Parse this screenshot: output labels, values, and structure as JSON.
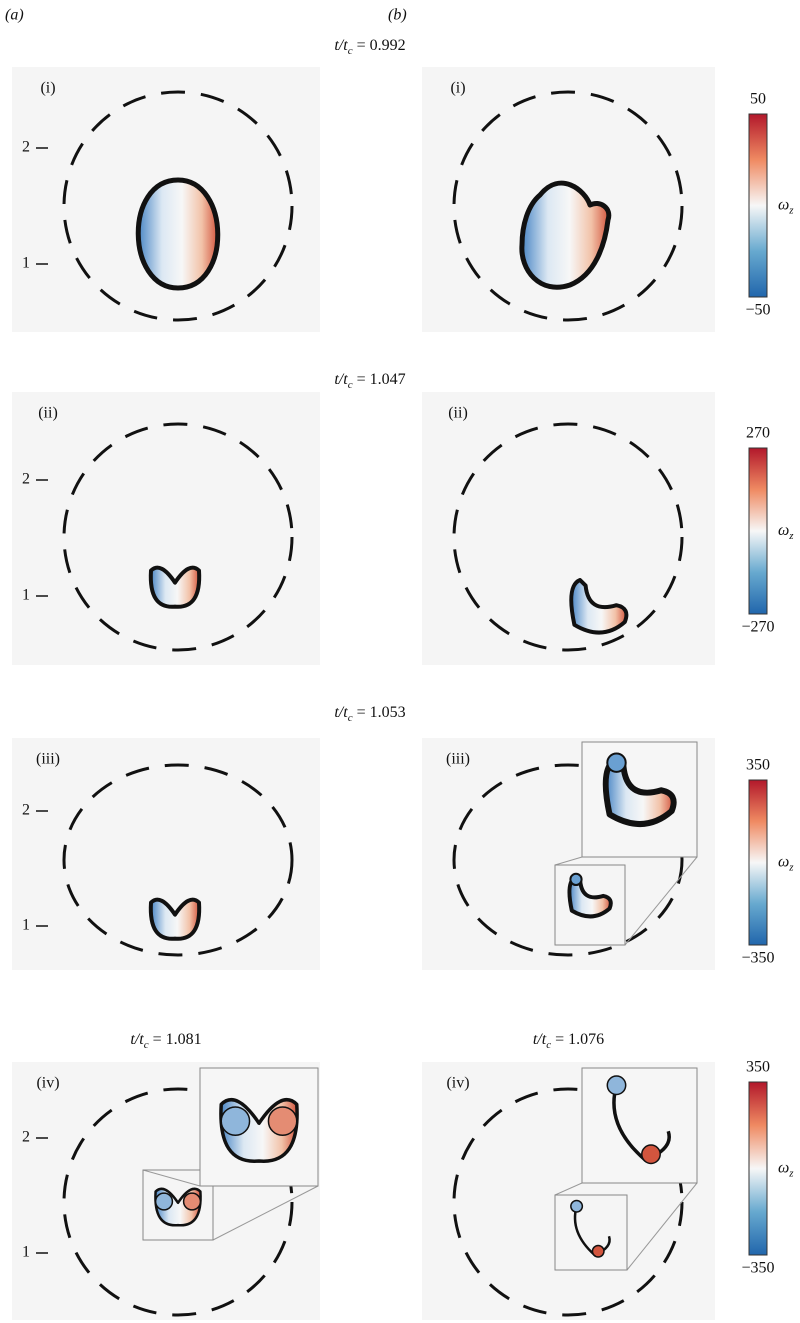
{
  "columns": [
    "(a)",
    "(b)"
  ],
  "rows": [
    {
      "time": {
        "main": "t/t",
        "sub": "c",
        "rest": " = 0.992"
      },
      "panels": [
        {
          "label": "(i)",
          "yticks": [
            "2",
            "1"
          ]
        },
        {
          "label": "(i)"
        }
      ],
      "colorbar": {
        "max": "50",
        "min": "−50",
        "label": {
          "main": "ω",
          "sub": "z"
        }
      }
    },
    {
      "time": {
        "main": "t/t",
        "sub": "c",
        "rest": " = 1.047"
      },
      "panels": [
        {
          "label": "(ii)",
          "yticks": [
            "2",
            "1"
          ]
        },
        {
          "label": "(ii)"
        }
      ],
      "colorbar": {
        "max": "270",
        "min": "−270",
        "label": {
          "main": "ω",
          "sub": "z"
        }
      }
    },
    {
      "time": {
        "main": "t/t",
        "sub": "c",
        "rest": " = 1.053"
      },
      "panels": [
        {
          "label": "(iii)",
          "yticks": [
            "2",
            "1"
          ]
        },
        {
          "label": "(iii)"
        }
      ],
      "colorbar": {
        "max": "350",
        "min": "−350",
        "label": {
          "main": "ω",
          "sub": "z"
        }
      }
    },
    {
      "panels": [
        {
          "time": {
            "main": "t/t",
            "sub": "c",
            "rest": " = 1.081"
          },
          "label": "(iv)",
          "yticks": [
            "2",
            "1"
          ]
        },
        {
          "time": {
            "main": "t/t",
            "sub": "c",
            "rest": " = 1.076"
          },
          "label": "(iv)"
        }
      ],
      "colorbar": {
        "max": "350",
        "min": "−350",
        "label": {
          "main": "ω",
          "sub": "z"
        }
      }
    }
  ]
}
